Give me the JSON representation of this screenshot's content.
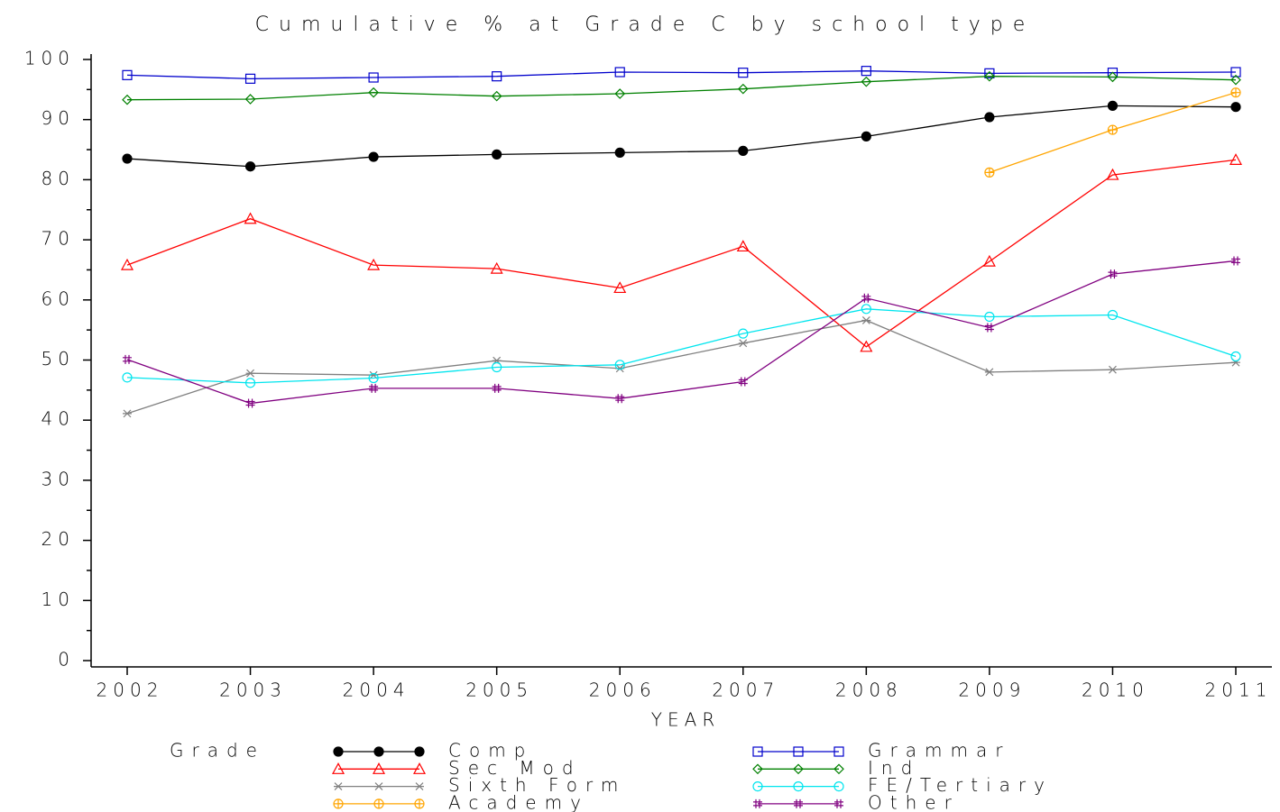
{
  "chart_data": {
    "type": "line",
    "title": "Cumulative % at Grade C by school type",
    "xlabel": "YEAR",
    "legend_title": "Grade",
    "categories": [
      "2002",
      "2003",
      "2004",
      "2005",
      "2006",
      "2007",
      "2008",
      "2009",
      "2010",
      "2011"
    ],
    "ylim": [
      0,
      100
    ],
    "yticks": [
      0,
      10,
      20,
      30,
      40,
      50,
      60,
      70,
      80,
      90,
      100
    ],
    "yminorticks": [
      5,
      15,
      25,
      35,
      45,
      55,
      65,
      75,
      85,
      95
    ],
    "series": [
      {
        "name": "Comp",
        "color": "#000000",
        "marker": "dot",
        "values": [
          83.5,
          82.2,
          83.8,
          84.2,
          84.5,
          84.8,
          87.2,
          90.4,
          92.3,
          92.1
        ]
      },
      {
        "name": "Grammar",
        "color": "#0000cc",
        "marker": "square",
        "values": [
          97.4,
          96.8,
          97.0,
          97.2,
          97.9,
          97.8,
          98.1,
          97.7,
          97.8,
          97.9
        ]
      },
      {
        "name": "Sec Mod",
        "color": "#ff0000",
        "marker": "triangle",
        "values": [
          65.8,
          73.5,
          65.8,
          65.2,
          62.0,
          68.9,
          52.2,
          66.4,
          80.8,
          83.3
        ]
      },
      {
        "name": "Ind",
        "color": "#008000",
        "marker": "diamond",
        "values": [
          93.3,
          93.4,
          94.5,
          93.9,
          94.3,
          95.1,
          96.3,
          97.2,
          97.1,
          96.6
        ]
      },
      {
        "name": "Sixth Form",
        "color": "#808080",
        "marker": "star",
        "values": [
          41.1,
          47.8,
          47.5,
          49.9,
          48.6,
          52.8,
          56.6,
          48.0,
          48.4,
          49.6
        ]
      },
      {
        "name": "FE/Tertiary",
        "color": "#00e5ee",
        "marker": "circle",
        "values": [
          47.1,
          46.2,
          47.0,
          48.8,
          49.2,
          54.4,
          58.5,
          57.2,
          57.5,
          50.6
        ]
      },
      {
        "name": "Academy",
        "color": "#ffa500",
        "marker": "circleplus",
        "values": [
          null,
          null,
          null,
          null,
          null,
          null,
          null,
          81.2,
          88.3,
          94.5
        ]
      },
      {
        "name": "Other",
        "color": "#800080",
        "marker": "hash",
        "values": [
          50.1,
          42.8,
          45.3,
          45.3,
          43.6,
          46.4,
          60.3,
          55.4,
          64.3,
          66.5
        ]
      }
    ]
  }
}
